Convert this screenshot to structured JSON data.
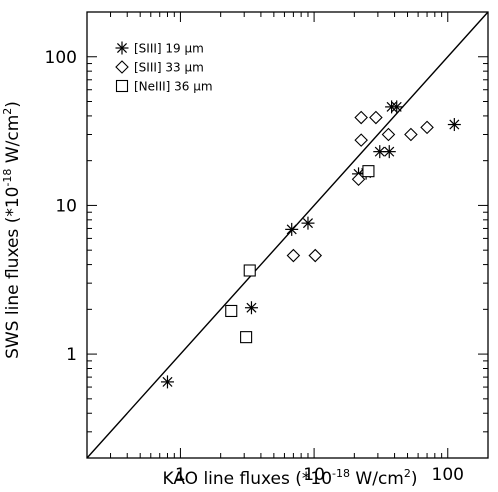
{
  "chart_data": {
    "type": "scatter",
    "x_scale": "log",
    "y_scale": "log",
    "xlim": [
      0.2,
      200
    ],
    "ylim": [
      0.2,
      200
    ],
    "xlabel_main": "KAO line fluxes (*10",
    "xlabel_exp": "-18",
    "xlabel_units": " W/cm",
    "xlabel_sq": "2",
    "xlabel_close": ")",
    "ylabel_main": "SWS line fluxes (*10",
    "ylabel_exp": "-18",
    "ylabel_units": " W/cm",
    "ylabel_sq": "2",
    "ylabel_close": ")",
    "x_ticks": [
      {
        "value": 1,
        "label": "1"
      },
      {
        "value": 10,
        "label": "10"
      },
      {
        "value": 100,
        "label": "100"
      }
    ],
    "y_ticks": [
      {
        "value": 1,
        "label": "1"
      },
      {
        "value": 10,
        "label": "10"
      },
      {
        "value": 100,
        "label": "100"
      }
    ],
    "reference_line": "y = x",
    "legend_position": "top-left",
    "grid": false,
    "series": [
      {
        "name": "[SIII] 19 μm",
        "marker": "asterisk",
        "points": [
          [
            0.8,
            0.65
          ],
          [
            3.4,
            2.05
          ],
          [
            6.8,
            6.9
          ],
          [
            9.0,
            7.6
          ],
          [
            21.5,
            16.3
          ],
          [
            24.5,
            16.5
          ],
          [
            31.0,
            23.0
          ],
          [
            36.5,
            23.0
          ],
          [
            38.0,
            46.0
          ],
          [
            41.5,
            46.0
          ],
          [
            112.0,
            35.0
          ]
        ]
      },
      {
        "name": "[SIII] 33 μm",
        "marker": "diamond",
        "points": [
          [
            7.0,
            4.6
          ],
          [
            10.2,
            4.6
          ],
          [
            21.5,
            15.0
          ],
          [
            22.5,
            27.5
          ],
          [
            22.5,
            39.0
          ],
          [
            29.0,
            39.0
          ],
          [
            36.0,
            30.0
          ],
          [
            53.0,
            30.0
          ],
          [
            70.0,
            33.5
          ]
        ]
      },
      {
        "name": "[NeIII] 36 μm",
        "marker": "square",
        "points": [
          [
            2.4,
            1.95
          ],
          [
            3.1,
            1.3
          ],
          [
            3.3,
            3.65
          ],
          [
            25.5,
            17.0
          ]
        ]
      }
    ]
  }
}
